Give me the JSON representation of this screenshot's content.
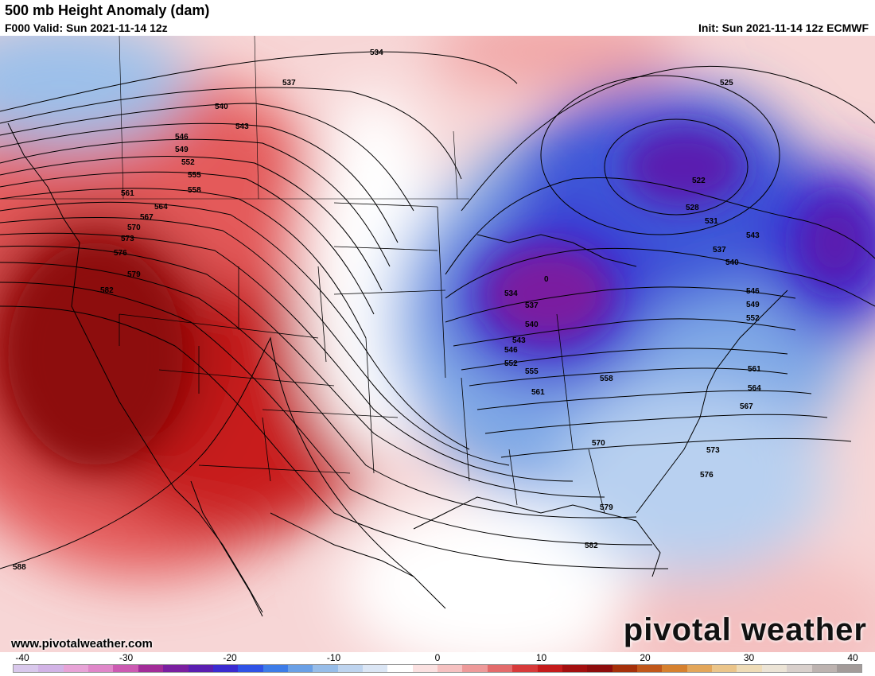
{
  "header": {
    "title": "500 mb Height Anomaly (dam)",
    "valid": "F000 Valid: Sun 2021-11-14 12z",
    "init": "Init: Sun 2021-11-14 12z ECMWF"
  },
  "map": {
    "contour_labels": [
      "534",
      "537",
      "540",
      "543",
      "546",
      "549",
      "552",
      "555",
      "558",
      "561",
      "564",
      "567",
      "570",
      "573",
      "576",
      "579",
      "582",
      "588",
      "525",
      "522",
      "528",
      "531",
      "0"
    ]
  },
  "footer": {
    "website": "www.pivotalweather.com",
    "brand": "pivotal weather"
  },
  "colorbar": {
    "ticks": [
      "-40",
      "-30",
      "-20",
      "-10",
      "0",
      "10",
      "20",
      "30",
      "40"
    ],
    "colors": [
      "#d9c8ec",
      "#d2b3e6",
      "#e8a3d7",
      "#e087c9",
      "#cc5ab2",
      "#a22c98",
      "#7a1fa0",
      "#5a1eb0",
      "#3b2bd0",
      "#2f52e6",
      "#3d7ce8",
      "#6aa0e6",
      "#97bde9",
      "#bed4ef",
      "#dbe6f5",
      "#ffffff",
      "#fbe1e1",
      "#f6c1c1",
      "#ee9a9a",
      "#e36b6b",
      "#d73a3a",
      "#c41b1b",
      "#a30f0f",
      "#8d0c0c",
      "#a5300a",
      "#c0571a",
      "#d6812f",
      "#e3a65a",
      "#ebc58a",
      "#efdcb7",
      "#ece4d6",
      "#d9d0cc",
      "#bdb3b0",
      "#a39b99"
    ]
  }
}
